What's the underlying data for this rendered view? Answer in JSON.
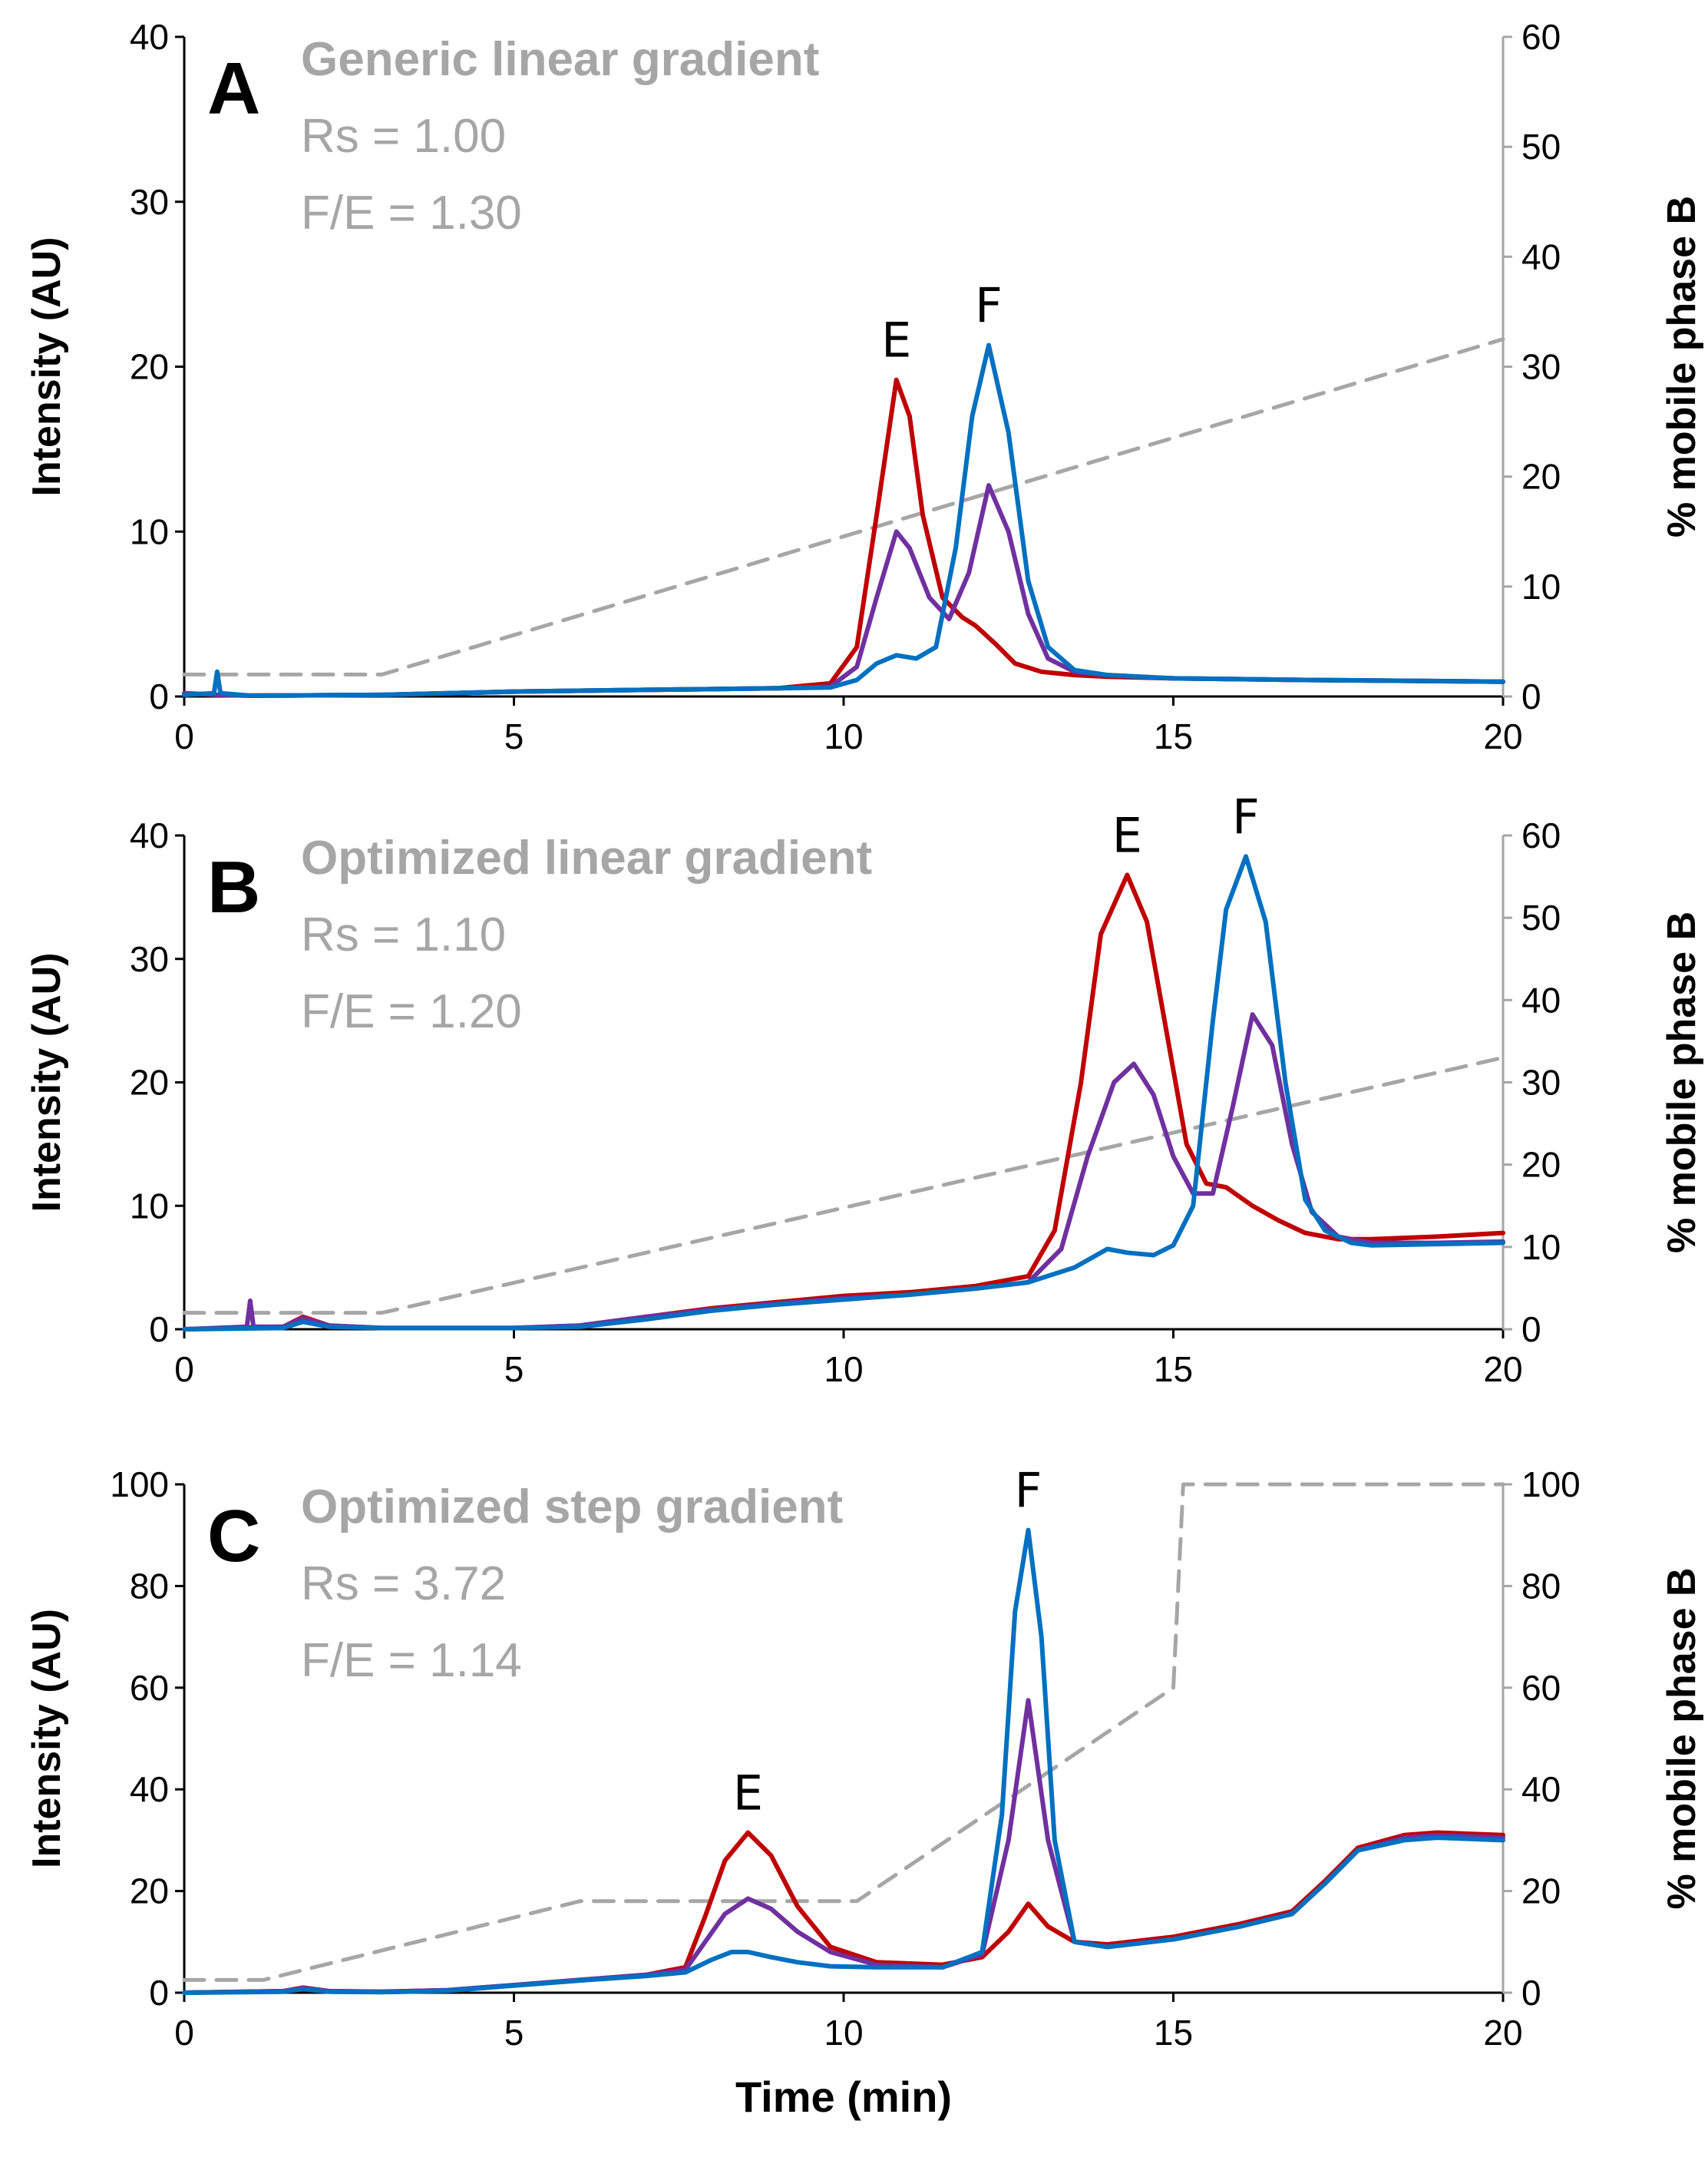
{
  "chart_data": [
    {
      "type": "line",
      "panel_label": "A",
      "annotations": [
        "Generic linear gradient",
        "Rs = 1.00",
        "F/E = 1.30"
      ],
      "xlabel": "",
      "ylabel": "Intensity (AU)",
      "y2label": "% mobile phase B",
      "xlim": [
        0,
        20
      ],
      "ylim": [
        0,
        40
      ],
      "y2lim": [
        0,
        60
      ],
      "xticks": [
        "0",
        "5",
        "10",
        "15",
        "20"
      ],
      "yticks": [
        "0",
        "10",
        "20",
        "30",
        "40"
      ],
      "y2ticks": [
        "0",
        "10",
        "20",
        "30",
        "40",
        "50",
        "60"
      ],
      "grid": false,
      "peak_labels": [
        {
          "text": "E",
          "x": 10.8,
          "y": 19.2
        },
        {
          "text": "F",
          "x": 12.2,
          "y": 21.3
        }
      ],
      "series": [
        {
          "color": "#c00000",
          "axis": "left",
          "x": [
            0,
            0.5,
            1,
            3,
            5,
            7,
            9,
            9.8,
            10.2,
            10.5,
            10.8,
            11.0,
            11.2,
            11.5,
            11.8,
            12.0,
            12.3,
            12.6,
            13.0,
            13.5,
            14,
            15,
            17,
            20
          ],
          "y": [
            0.2,
            0.1,
            0.05,
            0.1,
            0.3,
            0.4,
            0.5,
            0.8,
            3.0,
            11.0,
            19.2,
            17.0,
            11.0,
            6.0,
            4.8,
            4.3,
            3.2,
            2.0,
            1.5,
            1.3,
            1.2,
            1.1,
            1.0,
            0.9
          ]
        },
        {
          "color": "#7030a0",
          "axis": "left",
          "x": [
            0,
            0.5,
            1,
            3,
            5,
            7,
            9,
            9.8,
            10.2,
            10.5,
            10.8,
            11.0,
            11.3,
            11.6,
            11.9,
            12.2,
            12.5,
            12.8,
            13.1,
            13.5,
            14,
            15,
            17,
            20
          ],
          "y": [
            0.2,
            0.1,
            0.05,
            0.1,
            0.3,
            0.4,
            0.5,
            0.6,
            1.8,
            6.0,
            10.0,
            9.0,
            6.0,
            4.7,
            7.5,
            12.8,
            10.0,
            5.0,
            2.3,
            1.5,
            1.3,
            1.1,
            1.0,
            0.9
          ]
        },
        {
          "color": "#0070c0",
          "axis": "left",
          "x": [
            0,
            0.45,
            0.5,
            0.55,
            1,
            3,
            5,
            7,
            9,
            9.8,
            10.2,
            10.5,
            10.8,
            11.1,
            11.4,
            11.7,
            11.95,
            12.2,
            12.5,
            12.8,
            13.1,
            13.5,
            14,
            15,
            17,
            20
          ],
          "y": [
            0.1,
            0.2,
            1.5,
            0.2,
            0.05,
            0.1,
            0.3,
            0.4,
            0.5,
            0.55,
            1.0,
            2.0,
            2.5,
            2.3,
            3.0,
            9.0,
            17.0,
            21.3,
            16.0,
            7.0,
            3.0,
            1.6,
            1.3,
            1.1,
            1.0,
            0.9
          ]
        },
        {
          "color": "#a6a6a6",
          "axis": "right",
          "dashed": true,
          "x": [
            0,
            3,
            20
          ],
          "y": [
            2,
            2,
            32.5
          ]
        }
      ]
    },
    {
      "type": "line",
      "panel_label": "B",
      "annotations": [
        "Optimized linear gradient",
        "Rs = 1.10",
        "F/E = 1.20"
      ],
      "xlabel": "",
      "ylabel": "Intensity (AU)",
      "y2label": "% mobile phase B",
      "xlim": [
        0,
        20
      ],
      "ylim": [
        0,
        40
      ],
      "y2lim": [
        0,
        60
      ],
      "xticks": [
        "0",
        "5",
        "10",
        "15",
        "20"
      ],
      "yticks": [
        "0",
        "10",
        "20",
        "30",
        "40"
      ],
      "y2ticks": [
        "0",
        "10",
        "20",
        "30",
        "40",
        "50",
        "60"
      ],
      "grid": false,
      "peak_labels": [
        {
          "text": "E",
          "x": 14.3,
          "y": 36.8
        },
        {
          "text": "F",
          "x": 16.1,
          "y": 38.3
        }
      ],
      "series": [
        {
          "color": "#c00000",
          "axis": "left",
          "x": [
            0,
            1.5,
            1.8,
            2.2,
            3,
            4,
            5,
            6,
            7,
            8,
            9,
            10,
            11,
            12,
            12.8,
            13.2,
            13.6,
            13.9,
            14.3,
            14.6,
            14.9,
            15.2,
            15.5,
            15.8,
            16.2,
            16.6,
            17.0,
            17.5,
            18,
            19,
            20
          ],
          "y": [
            0,
            0.2,
            1.0,
            0.3,
            0.1,
            0.1,
            0.1,
            0.3,
            1.0,
            1.7,
            2.2,
            2.7,
            3.0,
            3.5,
            4.3,
            8.0,
            20.0,
            32.0,
            36.8,
            33.0,
            24.0,
            15.0,
            11.8,
            11.5,
            10.0,
            8.8,
            7.8,
            7.3,
            7.3,
            7.5,
            7.8
          ]
        },
        {
          "color": "#7030a0",
          "axis": "left",
          "x": [
            0,
            0.95,
            1.0,
            1.05,
            1.5,
            1.8,
            2.2,
            3,
            4,
            5,
            6,
            7,
            8,
            9,
            10,
            11,
            12,
            12.8,
            13.3,
            13.7,
            14.1,
            14.4,
            14.7,
            15.0,
            15.3,
            15.6,
            15.9,
            16.2,
            16.5,
            16.8,
            17.1,
            17.5,
            18,
            19,
            20
          ],
          "y": [
            0,
            0.2,
            2.3,
            0.2,
            0.2,
            0.9,
            0.3,
            0.1,
            0.1,
            0.1,
            0.3,
            1.0,
            1.6,
            2.1,
            2.5,
            2.8,
            3.3,
            3.8,
            6.5,
            14.0,
            20.0,
            21.5,
            19.0,
            14.0,
            11.0,
            11.0,
            18.0,
            25.5,
            23.0,
            15.0,
            9.5,
            7.5,
            7.0,
            7.0,
            7.1
          ]
        },
        {
          "color": "#0070c0",
          "axis": "left",
          "x": [
            0,
            1.5,
            1.8,
            2.2,
            3,
            4,
            5,
            6,
            7,
            8,
            9,
            10,
            11,
            12,
            12.8,
            13.5,
            14.0,
            14.3,
            14.7,
            15.0,
            15.3,
            15.6,
            15.8,
            16.1,
            16.4,
            16.7,
            17.0,
            17.3,
            17.7,
            18,
            19,
            20
          ],
          "y": [
            0,
            0.1,
            0.6,
            0.2,
            0.1,
            0.1,
            0.1,
            0.2,
            0.8,
            1.5,
            2.0,
            2.4,
            2.8,
            3.3,
            3.8,
            5.0,
            6.5,
            6.2,
            6.0,
            6.8,
            10.0,
            25.0,
            34.0,
            38.3,
            33.0,
            20.0,
            10.5,
            8.0,
            7.0,
            6.8,
            6.9,
            7.0
          ]
        },
        {
          "color": "#a6a6a6",
          "axis": "right",
          "dashed": true,
          "x": [
            0,
            3,
            20
          ],
          "y": [
            2,
            2,
            33
          ]
        }
      ]
    },
    {
      "type": "line",
      "panel_label": "C",
      "annotations": [
        "Optimized step gradient",
        "Rs = 3.72",
        "F/E = 1.14"
      ],
      "xlabel": "Time (min)",
      "ylabel": "Intensity (AU)",
      "y2label": "% mobile phase B",
      "xlim": [
        0,
        20
      ],
      "ylim": [
        0,
        100
      ],
      "y2lim": [
        0,
        100
      ],
      "xticks": [
        "0",
        "5",
        "10",
        "15",
        "20"
      ],
      "yticks": [
        "0",
        "20",
        "40",
        "60",
        "80",
        "100"
      ],
      "y2ticks": [
        "0",
        "20",
        "40",
        "60",
        "80",
        "100"
      ],
      "grid": false,
      "peak_labels": [
        {
          "text": "E",
          "x": 8.55,
          "y": 31.5
        },
        {
          "text": "F",
          "x": 12.8,
          "y": 91
        }
      ],
      "series": [
        {
          "color": "#c00000",
          "axis": "left",
          "x": [
            0,
            1.5,
            1.8,
            2.2,
            3,
            4,
            5,
            6,
            7,
            7.6,
            7.9,
            8.2,
            8.55,
            8.9,
            9.3,
            9.8,
            10.5,
            11.5,
            12.1,
            12.5,
            12.8,
            13.1,
            13.5,
            14,
            15,
            16,
            16.8,
            17.3,
            17.8,
            18.5,
            19,
            20
          ],
          "y": [
            0,
            0.3,
            1.0,
            0.3,
            0.2,
            0.5,
            1.5,
            2.5,
            3.5,
            5.0,
            15.0,
            26.0,
            31.5,
            27.0,
            17.0,
            9.0,
            6.0,
            5.5,
            7.0,
            12.0,
            17.5,
            13.0,
            10.0,
            9.5,
            11.0,
            13.5,
            16.0,
            22.0,
            28.5,
            31.0,
            31.5,
            31.0
          ]
        },
        {
          "color": "#7030a0",
          "axis": "left",
          "x": [
            0,
            1.5,
            1.8,
            2.2,
            3,
            4,
            5,
            6,
            7,
            7.6,
            7.9,
            8.2,
            8.55,
            8.9,
            9.3,
            9.8,
            10.5,
            11.5,
            12.1,
            12.5,
            12.8,
            13.1,
            13.5,
            14,
            15,
            16,
            16.8,
            17.3,
            17.8,
            18.5,
            19,
            20
          ],
          "y": [
            0,
            0.3,
            0.9,
            0.3,
            0.2,
            0.5,
            1.5,
            2.5,
            3.5,
            4.5,
            10.0,
            15.5,
            18.5,
            16.5,
            12.0,
            8.0,
            5.5,
            5.0,
            7.5,
            30.0,
            57.5,
            30.0,
            10.0,
            9.0,
            10.5,
            13.0,
            15.5,
            21.5,
            28.0,
            30.5,
            31.0,
            30.5
          ]
        },
        {
          "color": "#0070c0",
          "axis": "left",
          "x": [
            0,
            1.5,
            1.8,
            2.2,
            3,
            4,
            5,
            6,
            7,
            7.6,
            8.0,
            8.3,
            8.55,
            8.9,
            9.3,
            9.8,
            10.5,
            11.5,
            12.1,
            12.4,
            12.6,
            12.8,
            13.0,
            13.2,
            13.5,
            14,
            15,
            16,
            16.8,
            17.3,
            17.8,
            18.5,
            19,
            20
          ],
          "y": [
            0,
            0.2,
            0.7,
            0.2,
            0.1,
            0.4,
            1.4,
            2.4,
            3.3,
            4.0,
            6.5,
            8.0,
            8.0,
            7.0,
            6.0,
            5.2,
            5.0,
            5.0,
            8.0,
            35.0,
            75.0,
            91.0,
            70.0,
            30.0,
            10.0,
            9.0,
            10.5,
            13.0,
            15.5,
            21.5,
            28.0,
            30.0,
            30.5,
            30.0
          ]
        },
        {
          "color": "#a6a6a6",
          "axis": "right",
          "dashed": true,
          "x": [
            0,
            1.2,
            6,
            10.2,
            15,
            15.15,
            20
          ],
          "y": [
            2.5,
            2.5,
            18,
            18,
            60,
            100,
            100
          ]
        }
      ]
    }
  ]
}
